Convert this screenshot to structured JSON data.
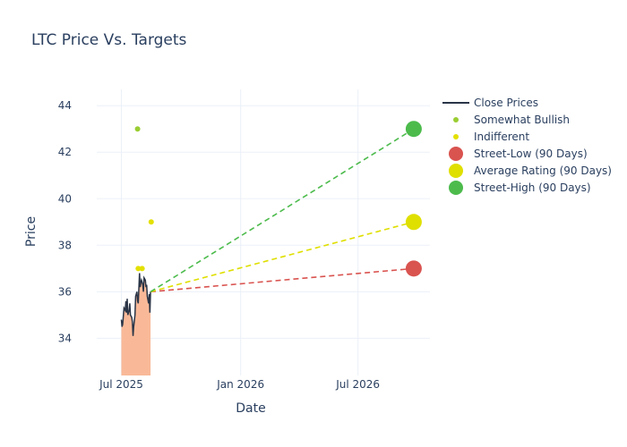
{
  "chart_data": {
    "type": "line",
    "title": "LTC Price Vs. Targets",
    "xlabel": "Date",
    "ylabel": "Price",
    "ylim": [
      32.4,
      44.7
    ],
    "xlim": [
      "2025-05-24",
      "2026-10-20"
    ],
    "y_ticks": [
      34,
      36,
      38,
      40,
      42,
      44
    ],
    "x_ticks": [
      {
        "date": "2025-07-01",
        "label": "Jul 2025"
      },
      {
        "date": "2026-01-01",
        "label": "Jan 2026"
      },
      {
        "date": "2026-07-01",
        "label": "Jul 2026"
      }
    ],
    "grid": true,
    "legend_position": "right",
    "series": [
      {
        "name": "Close Prices",
        "kind": "line-area",
        "color": "#2a3547",
        "fill_color": "#f9b998",
        "points": [
          [
            "2025-07-01",
            34.8
          ],
          [
            "2025-07-02",
            34.5
          ],
          [
            "2025-07-03",
            34.6
          ],
          [
            "2025-07-05",
            35.3
          ],
          [
            "2025-07-07",
            35.2
          ],
          [
            "2025-07-08",
            35.6
          ],
          [
            "2025-07-09",
            35.1
          ],
          [
            "2025-07-10",
            35.7
          ],
          [
            "2025-07-11",
            35.0
          ],
          [
            "2025-07-13",
            35.2
          ],
          [
            "2025-07-14",
            35.5
          ],
          [
            "2025-07-15",
            35.0
          ],
          [
            "2025-07-17",
            34.9
          ],
          [
            "2025-07-18",
            34.7
          ],
          [
            "2025-07-19",
            34.1
          ],
          [
            "2025-07-20",
            34.5
          ],
          [
            "2025-07-22",
            35.0
          ],
          [
            "2025-07-23",
            35.8
          ],
          [
            "2025-07-24",
            35.9
          ],
          [
            "2025-07-25",
            36.0
          ],
          [
            "2025-07-26",
            35.6
          ],
          [
            "2025-07-27",
            35.5
          ],
          [
            "2025-07-29",
            36.8
          ],
          [
            "2025-07-30",
            36.2
          ],
          [
            "2025-07-31",
            36.4
          ],
          [
            "2025-08-01",
            36.5
          ],
          [
            "2025-08-03",
            36.3
          ],
          [
            "2025-08-04",
            36.0
          ],
          [
            "2025-08-05",
            36.6
          ],
          [
            "2025-08-07",
            36.5
          ],
          [
            "2025-08-08",
            36.2
          ],
          [
            "2025-08-09",
            36.3
          ],
          [
            "2025-08-10",
            35.8
          ],
          [
            "2025-08-12",
            35.5
          ],
          [
            "2025-08-13",
            35.9
          ],
          [
            "2025-08-14",
            35.1
          ],
          [
            "2025-08-15",
            36.0
          ]
        ]
      },
      {
        "name": "Somewhat Bullish",
        "kind": "markers",
        "color": "#9acd32",
        "points": [
          [
            "2025-07-26",
            43.0
          ]
        ]
      },
      {
        "name": "Indifferent",
        "kind": "markers",
        "color": "#e3e000",
        "points": [
          [
            "2025-07-27",
            37.0
          ],
          [
            "2025-08-02",
            37.0
          ],
          [
            "2025-08-16",
            39.0
          ]
        ]
      },
      {
        "name": "Street-Low (90 Days)",
        "kind": "target",
        "color": "#d9534f",
        "from": [
          "2025-08-15",
          36.0
        ],
        "to": [
          "2026-09-25",
          37.0
        ]
      },
      {
        "name": "Average Rating (90 Days)",
        "kind": "target",
        "color": "#dfdf00",
        "from": [
          "2025-08-15",
          36.0
        ],
        "to": [
          "2026-09-25",
          39.0
        ]
      },
      {
        "name": "Street-High (90 Days)",
        "kind": "target",
        "color": "#4cbb4c",
        "from": [
          "2025-08-15",
          36.0
        ],
        "to": [
          "2026-09-25",
          43.0
        ]
      }
    ]
  }
}
